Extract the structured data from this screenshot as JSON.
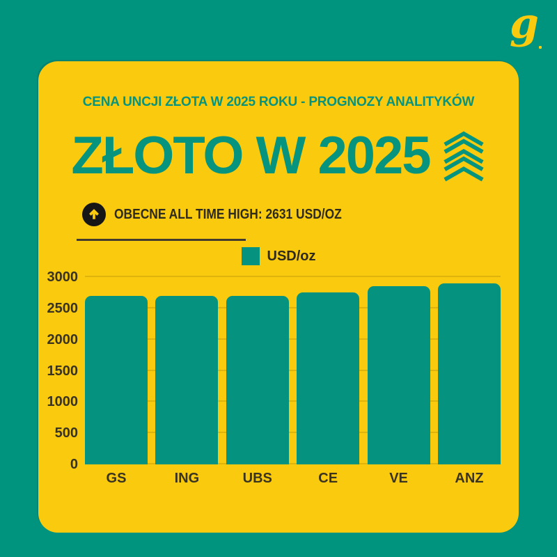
{
  "theme": {
    "background": "#00947E",
    "card": "#F9CA0E",
    "accent": "#07947F",
    "bar_color": "#05937F",
    "dark_text": "#3A3320",
    "icon_black": "#161616"
  },
  "logo": {
    "glyph": "g"
  },
  "header": {
    "kicker": "CENA UNCJI ZŁOTA W 2025 ROKU - PROGNOZY ANALITYKÓW",
    "title": "ZŁOTO W 2025"
  },
  "highlight": {
    "icon": "arrow-up-circle",
    "label": "OBECNE ALL TIME HIGH: 2631 USD/OZ"
  },
  "chart_data": {
    "type": "bar",
    "categories": [
      "GS",
      "ING",
      "UBS",
      "CE",
      "VE",
      "ANZ"
    ],
    "values": [
      2700,
      2700,
      2700,
      2750,
      2850,
      2900
    ],
    "title": "ZŁOTO W 2025",
    "xlabel": "",
    "ylabel": "",
    "ylim": [
      0,
      3000
    ],
    "yticks": [
      0,
      500,
      1000,
      1500,
      2000,
      2500,
      3000
    ],
    "grid": true,
    "legend": [
      {
        "label": "USD/oz",
        "color": "#05937F"
      }
    ],
    "legend_position": "top-center",
    "bar_color": "#05937F"
  }
}
